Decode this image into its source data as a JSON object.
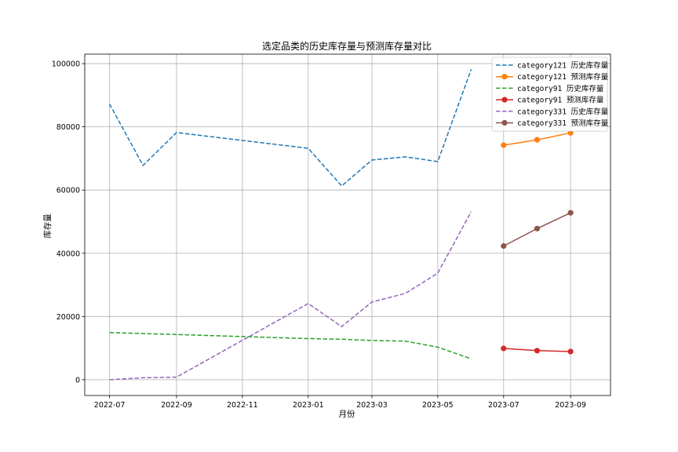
{
  "chart_data": {
    "type": "line",
    "title": "选定品类的历史库存量与预测库存量对比",
    "xlabel": "月份",
    "ylabel": "库存量",
    "x_ticks": [
      "2022-07",
      "2022-09",
      "2022-11",
      "2023-01",
      "2023-03",
      "2023-05",
      "2023-07",
      "2023-09"
    ],
    "y_ticks": [
      0,
      20000,
      40000,
      60000,
      80000,
      100000
    ],
    "xlim": [
      "2022-06-08",
      "2023-10-08"
    ],
    "ylim": [
      -5000,
      103000
    ],
    "grid": true,
    "legend_position": "top-right",
    "series": [
      {
        "name": "category121 历史库存量",
        "color": "#1f77b4",
        "style": "dashed",
        "marker": false,
        "x": [
          "2022-07",
          "2022-08",
          "2022-09",
          "2023-01",
          "2023-02",
          "2023-03",
          "2023-04",
          "2023-05",
          "2023-06"
        ],
        "y": [
          87200,
          67800,
          78200,
          73200,
          61300,
          69500,
          70500,
          69000,
          98200
        ]
      },
      {
        "name": "category121 预测库存量",
        "color": "#ff7f0e",
        "style": "solid",
        "marker": true,
        "x": [
          "2023-07",
          "2023-08",
          "2023-09"
        ],
        "y": [
          74200,
          75900,
          78100
        ]
      },
      {
        "name": "category91 历史库存量",
        "color": "#2ca02c",
        "style": "dashed",
        "marker": false,
        "x": [
          "2022-07",
          "2022-09",
          "2023-01",
          "2023-02",
          "2023-03",
          "2023-04",
          "2023-05",
          "2023-06"
        ],
        "y": [
          14900,
          14300,
          13000,
          12800,
          12400,
          12200,
          10300,
          6600
        ]
      },
      {
        "name": "category91 预测库存量",
        "color": "#d62728",
        "style": "solid",
        "marker": true,
        "x": [
          "2023-07",
          "2023-08",
          "2023-09"
        ],
        "y": [
          9900,
          9200,
          8900
        ]
      },
      {
        "name": "category331 历史库存量",
        "color": "#9467bd",
        "style": "dashed",
        "marker": false,
        "x": [
          "2022-07",
          "2022-08",
          "2022-09",
          "2023-01",
          "2023-02",
          "2023-03",
          "2023-04",
          "2023-05",
          "2023-06"
        ],
        "y": [
          0,
          600,
          800,
          24100,
          16800,
          24600,
          27300,
          33700,
          53200
        ]
      },
      {
        "name": "category331 预测库存量",
        "color": "#8c564b",
        "style": "solid",
        "marker": true,
        "x": [
          "2023-07",
          "2023-08",
          "2023-09"
        ],
        "y": [
          42300,
          47800,
          52800
        ]
      }
    ]
  }
}
